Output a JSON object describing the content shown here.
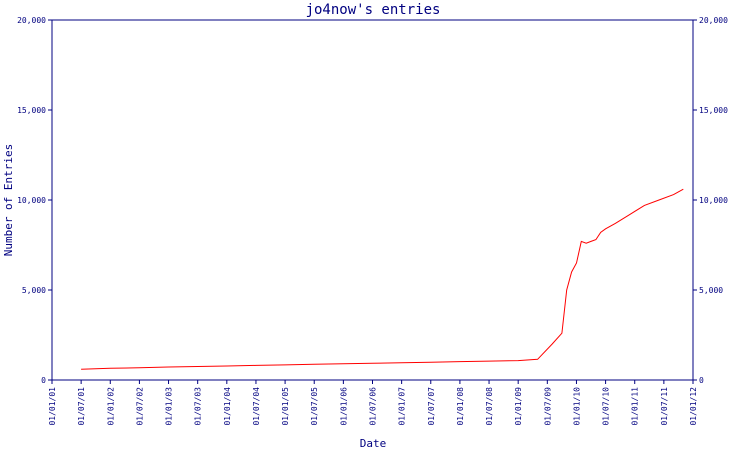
{
  "chart_data": {
    "type": "line",
    "title": "jo4now's entries",
    "xlabel": "Date",
    "ylabel": "Number of Entries",
    "ylim": [
      0,
      20000
    ],
    "y_ticks": [
      {
        "value": 0,
        "label": "0"
      },
      {
        "value": 5000,
        "label": "5,000"
      },
      {
        "value": 10000,
        "label": "10,000"
      },
      {
        "value": 15000,
        "label": "15,000"
      },
      {
        "value": 20000,
        "label": "20,000"
      }
    ],
    "x_ticks": [
      "01/01/01",
      "01/07/01",
      "01/01/02",
      "01/07/02",
      "01/01/03",
      "01/07/03",
      "01/01/04",
      "01/07/04",
      "01/01/05",
      "01/07/05",
      "01/01/06",
      "01/07/06",
      "01/01/07",
      "01/07/07",
      "01/01/08",
      "01/07/08",
      "01/01/09",
      "01/07/09",
      "01/01/10",
      "01/07/10",
      "01/01/11",
      "01/07/11",
      "01/01/12"
    ],
    "grid": false,
    "line_color": "#ff0000",
    "axis_color": "#000080",
    "series": [
      {
        "x": [
          "2001-07",
          "2002-01",
          "2002-07",
          "2003-01",
          "2003-07",
          "2004-01",
          "2004-07",
          "2005-01",
          "2005-07",
          "2006-01",
          "2006-07",
          "2007-01",
          "2007-07",
          "2008-01",
          "2008-07",
          "2009-01",
          "2009-05",
          "2009-08",
          "2009-10",
          "2009-11",
          "2009-12",
          "2010-01",
          "2010-02",
          "2010-03",
          "2010-04",
          "2010-05",
          "2010-06",
          "2010-07",
          "2010-09",
          "2010-12",
          "2011-03",
          "2011-06",
          "2011-09",
          "2011-11"
        ],
        "values": [
          600,
          650,
          680,
          720,
          750,
          780,
          810,
          840,
          870,
          900,
          930,
          960,
          990,
          1020,
          1050,
          1080,
          1150,
          2000,
          2600,
          5000,
          6000,
          6500,
          7700,
          7600,
          7700,
          7800,
          8200,
          8400,
          8700,
          9200,
          9700,
          10000,
          10300,
          10600
        ]
      }
    ]
  }
}
